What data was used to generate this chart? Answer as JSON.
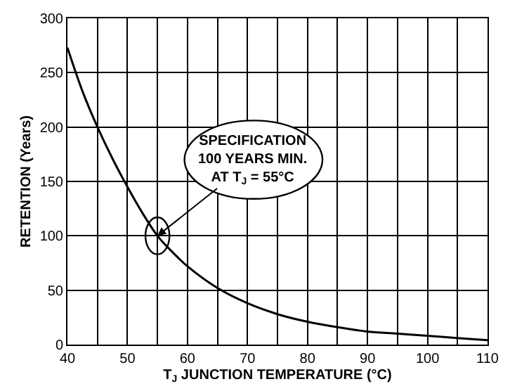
{
  "chart_data": {
    "type": "line",
    "xlabel": "T$_{J}$ JUNCTION TEMPERATURE (°C)",
    "ylabel": "RETENTION (Years)",
    "x": [
      40,
      42.5,
      45,
      47.5,
      50,
      52.5,
      55,
      57.5,
      60,
      65,
      70,
      75,
      80,
      85,
      90,
      95,
      100,
      105,
      110
    ],
    "series": [
      {
        "color": "#000000",
        "values": [
          273,
          233,
          200,
          171,
          145,
          121,
          100,
          85,
          72,
          52,
          38,
          28,
          21,
          16,
          12,
          10,
          8,
          6,
          4
        ]
      }
    ],
    "xlim": [
      40,
      110
    ],
    "ylim": [
      0,
      300
    ],
    "xticks": [
      40,
      {
        "value": 45,
        "label": null
      },
      50,
      {
        "value": 55,
        "label": null
      },
      60,
      {
        "value": 65,
        "label": null
      },
      70,
      {
        "value": 75,
        "label": null
      },
      80,
      {
        "value": 85,
        "label": null
      },
      90,
      {
        "value": 95,
        "label": null
      },
      100,
      {
        "value": 105,
        "label": null
      },
      110
    ],
    "yticks": [
      0,
      50,
      100,
      150,
      200,
      250,
      300
    ],
    "grid": true,
    "marker": "none",
    "line_style": "solid",
    "annotations": [
      {
        "text": "SPECIFICATION\n100 YEARS MIN.\nAT T$_{J}$ = 55°C",
        "x": 55,
        "y": 100
      }
    ]
  }
}
